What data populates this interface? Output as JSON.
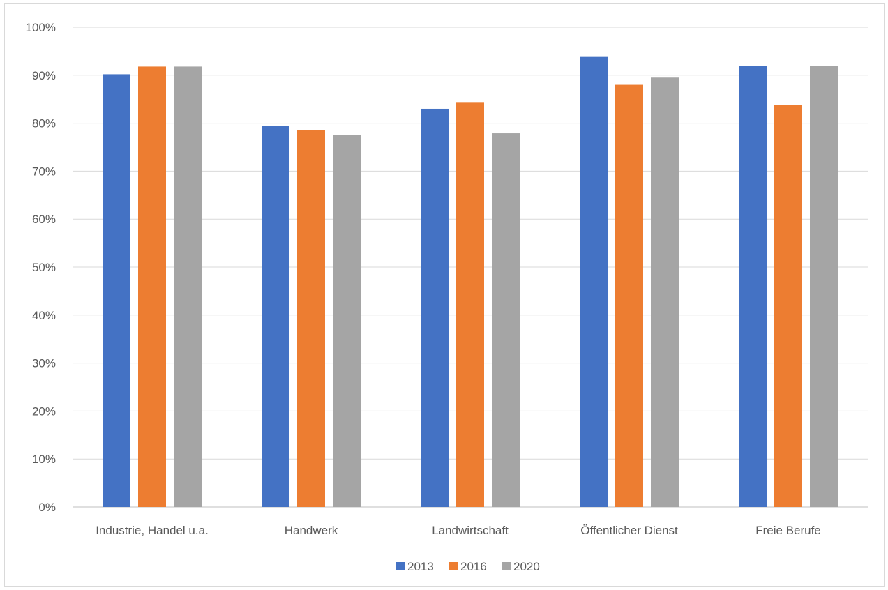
{
  "chart_data": {
    "type": "bar",
    "title": "",
    "xlabel": "",
    "ylabel": "",
    "categories": [
      "Industrie, Handel u.a.",
      "Handwerk",
      "Landwirtschaft",
      "Öffentlicher Dienst",
      "Freie Berufe"
    ],
    "series": [
      {
        "name": "2013",
        "color": "#4472c4",
        "values": [
          90.2,
          79.5,
          83.0,
          93.8,
          91.9
        ]
      },
      {
        "name": "2016",
        "color": "#ed7d31",
        "values": [
          91.8,
          78.6,
          84.4,
          88.0,
          83.8
        ]
      },
      {
        "name": "2020",
        "color": "#a5a5a5",
        "values": [
          91.8,
          77.5,
          77.9,
          89.5,
          92.0
        ]
      }
    ],
    "ylim": [
      0,
      100
    ],
    "yticks": [
      0,
      10,
      20,
      30,
      40,
      50,
      60,
      70,
      80,
      90,
      100
    ],
    "ytick_labels": [
      "0%",
      "10%",
      "20%",
      "30%",
      "40%",
      "50%",
      "60%",
      "70%",
      "80%",
      "90%",
      "100%"
    ],
    "grid": true,
    "legend_position": "bottom"
  }
}
